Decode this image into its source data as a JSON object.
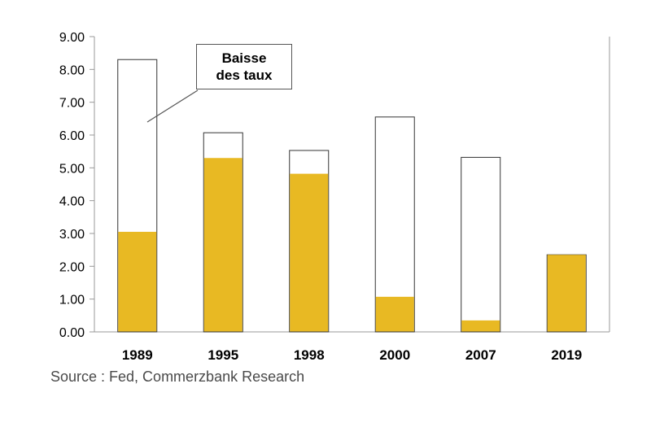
{
  "chart_data": {
    "type": "bar",
    "categories": [
      "1989",
      "1995",
      "1998",
      "2000",
      "2007",
      "2019"
    ],
    "series": [
      {
        "values": [
          8.3,
          6.07,
          5.53,
          6.55,
          5.32,
          2.35
        ],
        "color": "#ffffff",
        "stroke": "#333333"
      },
      {
        "values": [
          3.05,
          5.3,
          4.82,
          1.07,
          0.35,
          2.35
        ],
        "color": "#e8b923"
      }
    ],
    "yticks": [
      "0.00",
      "1.00",
      "2.00",
      "3.00",
      "4.00",
      "5.00",
      "6.00",
      "7.00",
      "8.00",
      "9.00"
    ],
    "ylim": [
      0,
      9
    ],
    "title": "",
    "xlabel": "",
    "ylabel": "",
    "annotation": {
      "line1": "Baisse",
      "line2": "des taux"
    },
    "grid": false
  },
  "source": "Source : Fed, Commerzbank Research"
}
